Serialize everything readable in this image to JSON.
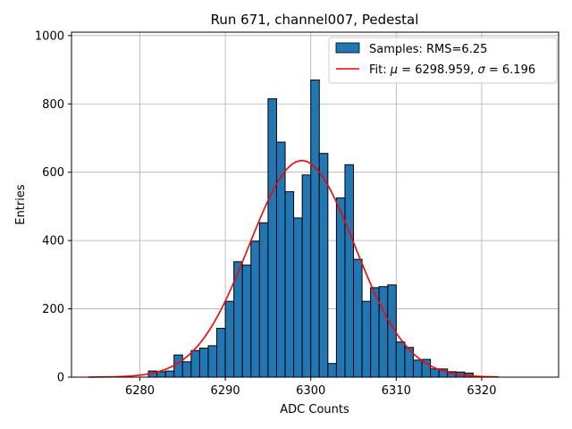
{
  "chart_data": {
    "type": "bar",
    "title": "Run 671, channel007, Pedestal",
    "xlabel": "ADC Counts",
    "ylabel": "Entries",
    "xlim": [
      6272,
      6329
    ],
    "ylim": [
      0,
      1010
    ],
    "xticks": [
      6280,
      6290,
      6300,
      6310,
      6320
    ],
    "yticks": [
      0,
      200,
      400,
      600,
      800,
      1000
    ],
    "grid": true,
    "legend_position": "top-right",
    "histogram": {
      "name": "Samples: RMS=6.25",
      "color": "#1f77b4",
      "bin_width": 1,
      "bin_start": 6281,
      "values": [
        18,
        16,
        18,
        65,
        45,
        78,
        85,
        92,
        143,
        222,
        338,
        328,
        398,
        452,
        815,
        688,
        543,
        466,
        592,
        870,
        655,
        40,
        525,
        622,
        345,
        222,
        262,
        265,
        270,
        103,
        87,
        50,
        52,
        24,
        24,
        16,
        15,
        12
      ]
    },
    "fit": {
      "name": "Fit: μ = 6298.959, σ = 6.196",
      "name_parts": [
        "Fit: ",
        "μ",
        " = 6298.959, ",
        "σ",
        " = 6.196"
      ],
      "color": "#ff0000",
      "mu": 6298.959,
      "sigma": 6.196,
      "amplitude": 634,
      "x_range": [
        6274,
        6322
      ]
    }
  }
}
